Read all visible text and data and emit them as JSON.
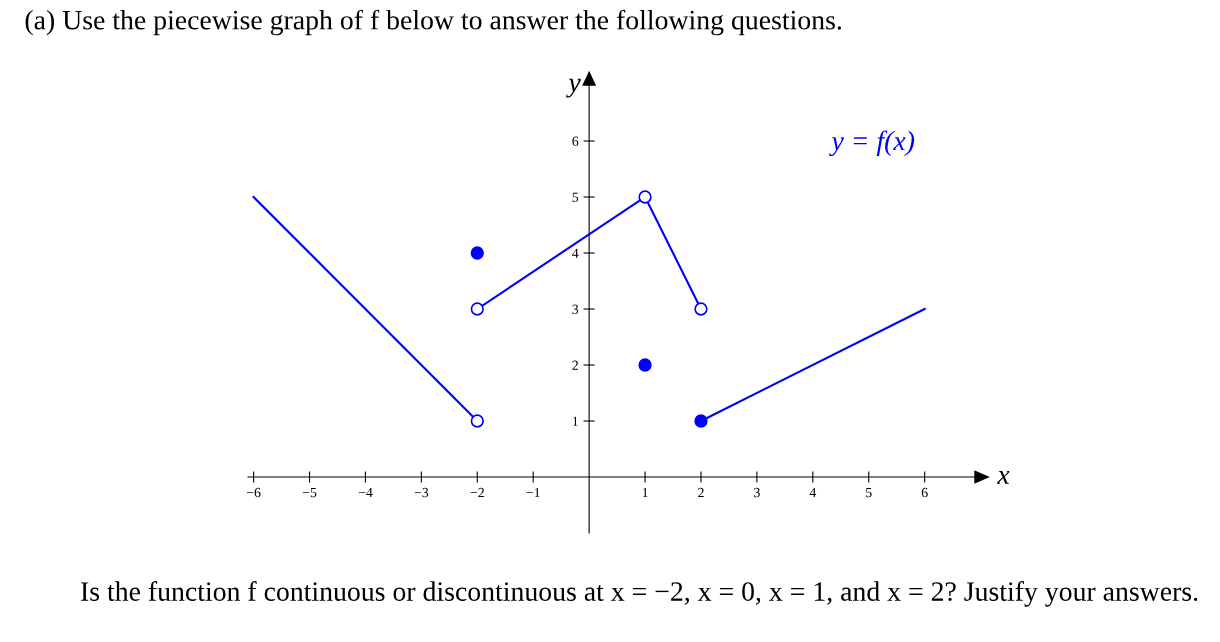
{
  "chart_data": {
    "type": "line",
    "title": "(a) Use the piecewise graph of f below to answer the following questions.",
    "xlabel": "x",
    "ylabel": "y",
    "xlim": [
      -6.1,
      6.9
    ],
    "ylim": [
      -1,
      7
    ],
    "xticks": [
      {
        "value": -6,
        "label": "−6"
      },
      {
        "value": -5,
        "label": "−5"
      },
      {
        "value": -4,
        "label": "−4"
      },
      {
        "value": -3,
        "label": "−3"
      },
      {
        "value": -2,
        "label": "−2"
      },
      {
        "value": -1,
        "label": "−1"
      },
      1,
      2,
      3,
      4,
      5,
      6
    ],
    "yticks": [
      1,
      2,
      3,
      4,
      5,
      6
    ],
    "grid": false,
    "legend": false,
    "series": [
      {
        "color": "#0000ff",
        "x": [
          -6,
          -2
        ],
        "values": [
          5,
          1
        ]
      },
      {
        "color": "#0000ff",
        "x": [
          -2,
          1
        ],
        "values": [
          3,
          5
        ]
      },
      {
        "color": "#0000ff",
        "x": [
          1,
          2
        ],
        "values": [
          5,
          3
        ]
      },
      {
        "color": "#0000ff",
        "x": [
          2,
          6
        ],
        "values": [
          1,
          3
        ]
      },
      {
        "type": "scatter",
        "color": "#0000ff",
        "colors": [
          "#ffffff",
          "#ffffff",
          "#ffffff",
          "#ffffff"
        ],
        "marker": "circle",
        "x": [
          -2,
          -2,
          1,
          2
        ],
        "values": [
          1,
          3,
          5,
          3
        ]
      },
      {
        "type": "scatter",
        "color": "#0000ff",
        "marker": "circle",
        "x": [
          -2,
          1,
          2
        ],
        "values": [
          4,
          2,
          1
        ]
      }
    ],
    "annotations": [
      "y = f(x)",
      "Is the function f continuous or discontinuous at x = −2, x = 0, x = 1, and x = 2? Justify your answers."
    ]
  }
}
